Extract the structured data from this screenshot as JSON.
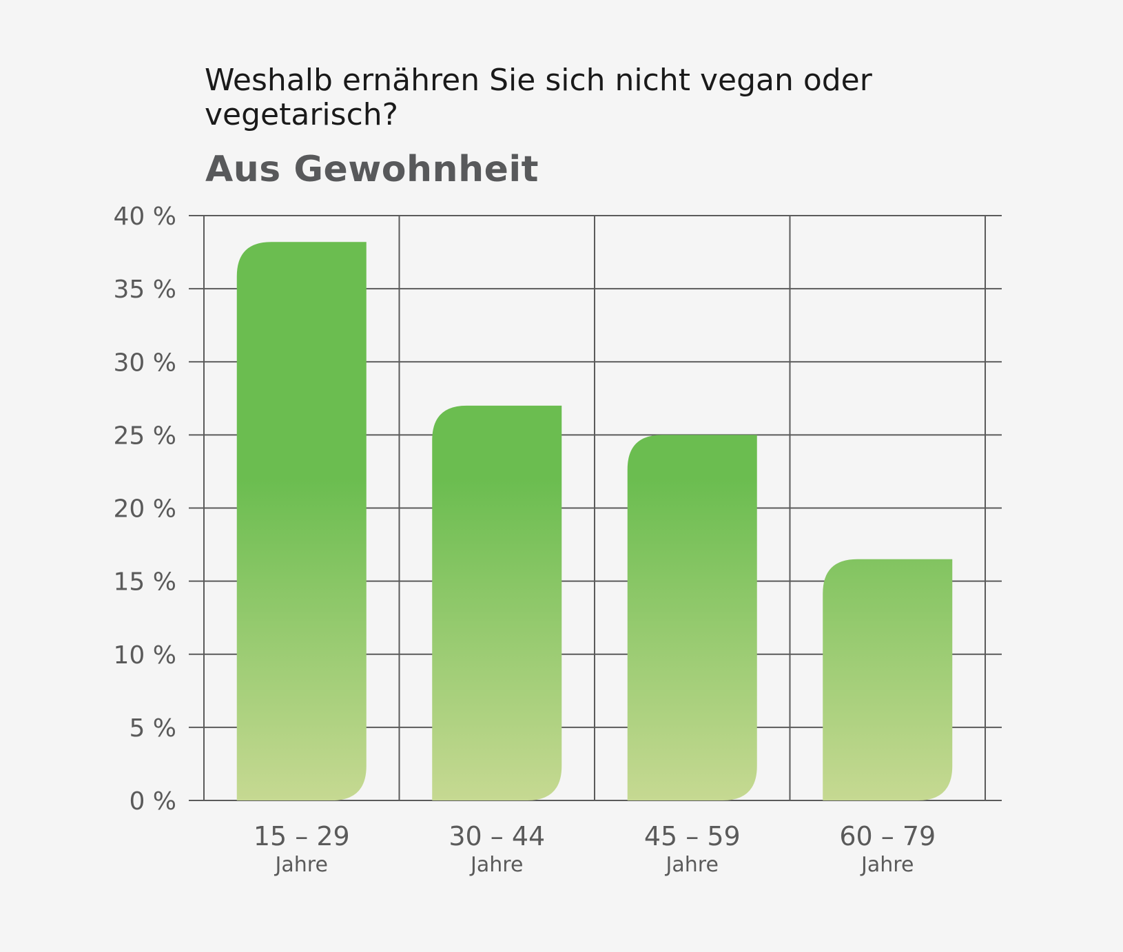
{
  "title": "Weshalb ernähren Sie sich nicht vegan oder vegetarisch?",
  "subtitle": "Aus Gewohnheit",
  "chart_data": {
    "type": "bar",
    "categories": [
      "15 – 29",
      "30 – 44",
      "45 – 59",
      "60 – 79"
    ],
    "category_sublabel": "Jahre",
    "values": [
      38.2,
      27,
      25,
      16.5
    ],
    "ylim": [
      0,
      40
    ],
    "yticks": [
      0,
      5,
      10,
      15,
      20,
      25,
      30,
      35,
      40
    ],
    "ytick_labels": [
      "0 %",
      "5 %",
      "10 %",
      "15 %",
      "20 %",
      "25 %",
      "30 %",
      "35 %",
      "40 %"
    ],
    "grid": true,
    "legend": "none",
    "colors": {
      "bar_top": "#6bbd50",
      "bar_bottom": "#c6d992",
      "grid": "#5a5a5a",
      "background": "#f5f5f5"
    }
  }
}
